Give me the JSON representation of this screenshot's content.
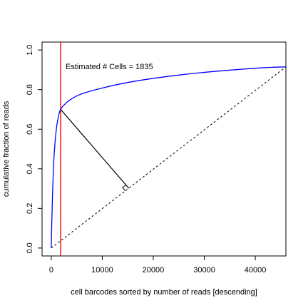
{
  "chart_data": {
    "type": "line",
    "xlabel": "cell barcodes sorted by number of reads [descending]",
    "ylabel": "cumulative fraction of reads",
    "xlim": [
      -1800,
      46000
    ],
    "ylim": [
      -0.04,
      1.04
    ],
    "x_ticks": [
      0,
      10000,
      20000,
      30000,
      40000
    ],
    "x_tick_labels": [
      "0",
      "10000",
      "20000",
      "30000",
      "40000"
    ],
    "y_ticks": [
      0.0,
      0.2,
      0.4,
      0.6,
      0.8,
      1.0
    ],
    "y_tick_labels": [
      "0.0",
      "0.2",
      "0.4",
      "0.6",
      "0.8",
      "1.0"
    ],
    "annotation": "Estimated # Cells = 1835",
    "estimated_cells": 1835,
    "series": [
      {
        "color": "#0000ff",
        "x": [
          0,
          100,
          250,
          500,
          800,
          1100,
          1500,
          1835,
          2500,
          3500,
          5000,
          7000,
          10000,
          14000,
          18000,
          23000,
          28000,
          33000,
          38000,
          42000,
          46000
        ],
        "y": [
          0.0,
          0.12,
          0.27,
          0.44,
          0.55,
          0.62,
          0.675,
          0.7,
          0.722,
          0.745,
          0.768,
          0.787,
          0.808,
          0.831,
          0.849,
          0.867,
          0.882,
          0.894,
          0.904,
          0.911,
          0.915
        ]
      }
    ],
    "cutoff_line": {
      "x": 1835,
      "color": "#ff0000"
    },
    "diagonal": {
      "x": [
        0,
        46000
      ],
      "y": [
        0.0,
        0.915
      ]
    },
    "knee_perpendicular": {
      "from": [
        1835,
        0.7
      ],
      "to": [
        15200,
        0.302
      ]
    }
  }
}
